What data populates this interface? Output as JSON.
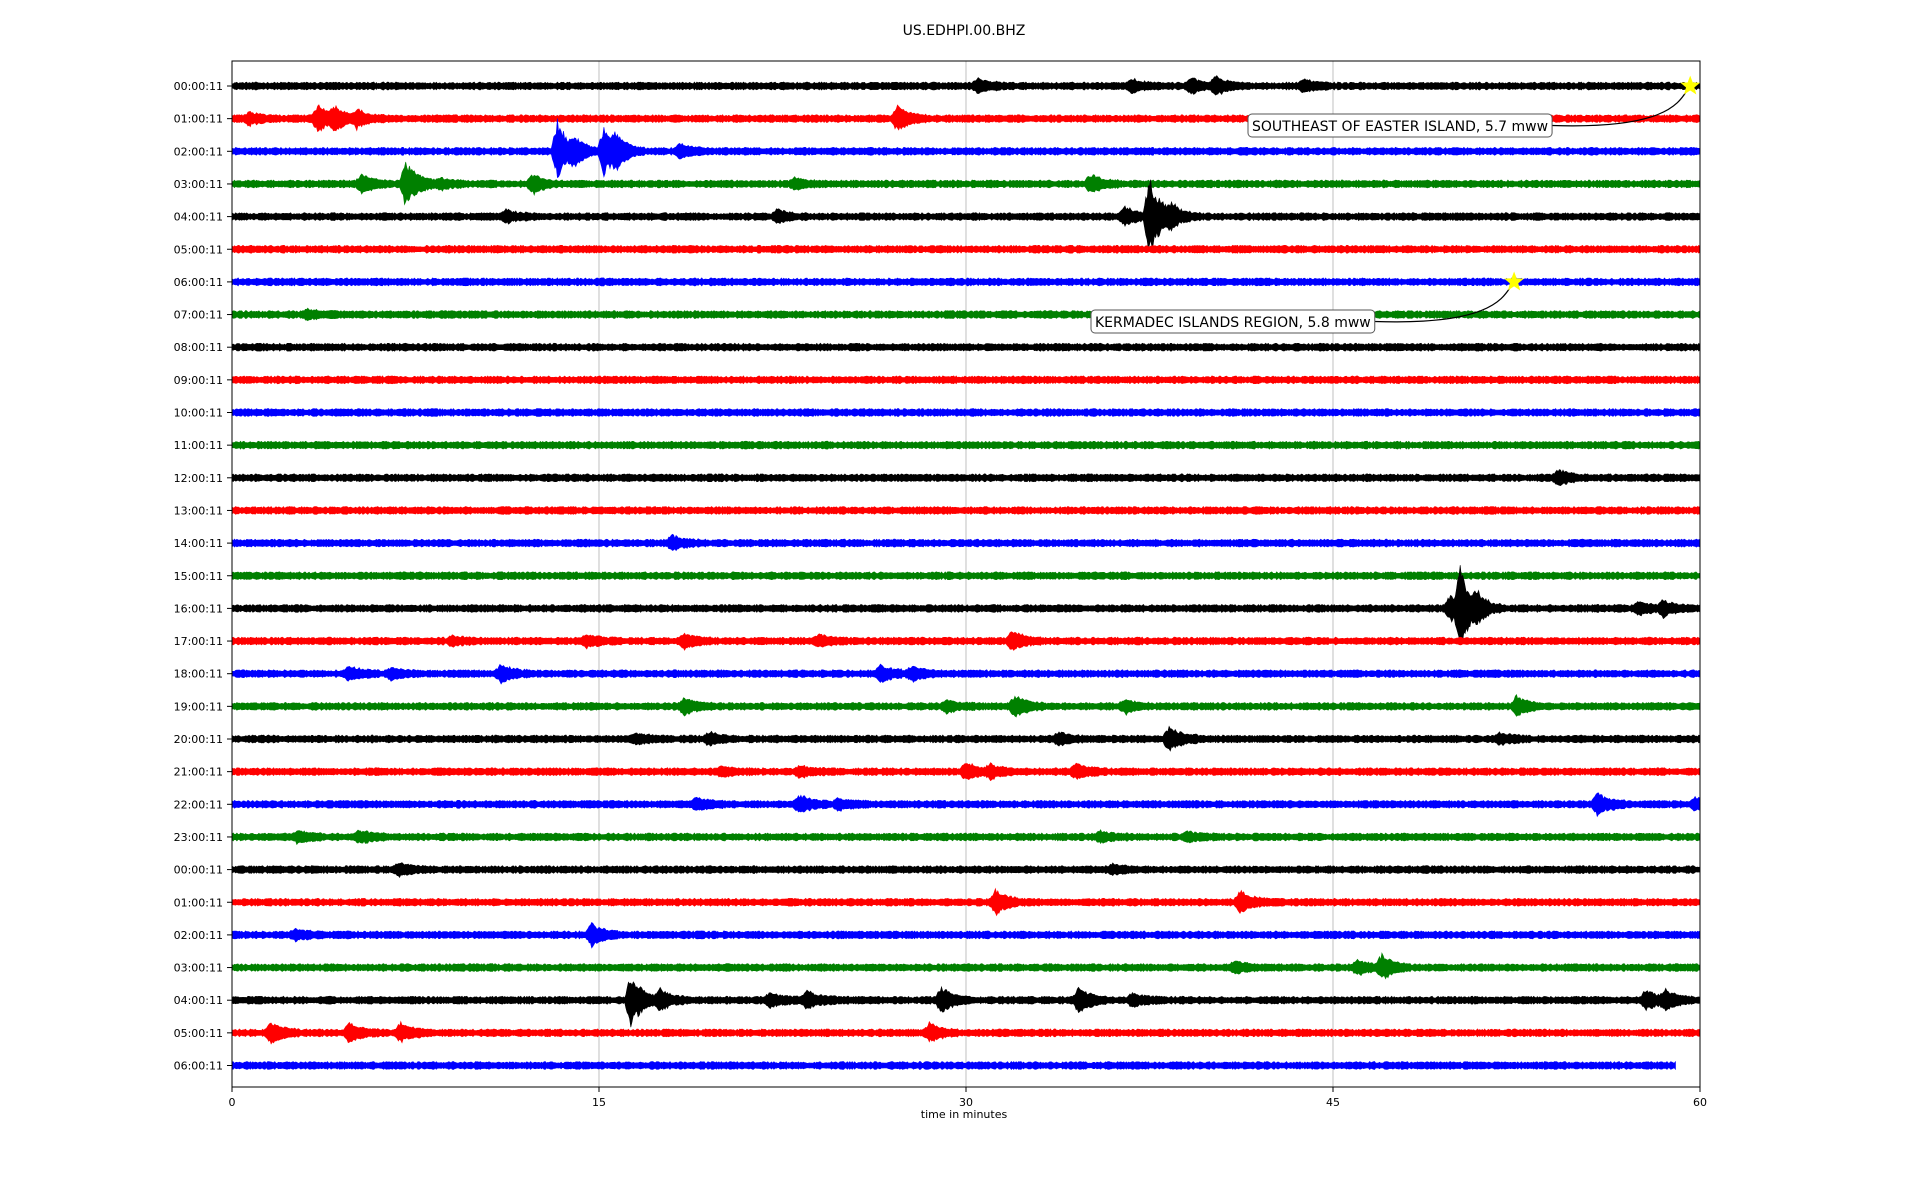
{
  "chart_data": {
    "type": "line",
    "title": "US.EDHPI.00.BHZ",
    "xlabel": "time in minutes",
    "ylabel": "",
    "xlim": [
      0,
      60
    ],
    "xticks": [
      0,
      15,
      30,
      45,
      60
    ],
    "grid": "vertical lines at 15, 30, 45",
    "trace_colors": [
      "#000000",
      "#ff0000",
      "#0000ff",
      "#008000"
    ],
    "star_color": "#ffff00",
    "rows": [
      {
        "label": "00:00:11",
        "color": "#000000",
        "events": [
          {
            "t": 30.5,
            "a": 0.35
          },
          {
            "t": 36.8,
            "a": 0.3
          },
          {
            "t": 39.2,
            "a": 0.4
          },
          {
            "t": 40.2,
            "a": 0.5
          },
          {
            "t": 43.8,
            "a": 0.3
          }
        ],
        "end": 60
      },
      {
        "label": "01:00:11",
        "color": "#ff0000",
        "events": [
          {
            "t": 0.7,
            "a": 0.3
          },
          {
            "t": 3.5,
            "a": 0.8
          },
          {
            "t": 4.2,
            "a": 0.6
          },
          {
            "t": 5.1,
            "a": 0.45
          },
          {
            "t": 27.2,
            "a": 0.7
          }
        ],
        "end": 60
      },
      {
        "label": "02:00:11",
        "color": "#0000ff",
        "events": [
          {
            "t": 13.3,
            "a": 1.9
          },
          {
            "t": 15.2,
            "a": 1.6
          },
          {
            "t": 14.0,
            "a": 0.5
          },
          {
            "t": 15.7,
            "a": 0.6
          },
          {
            "t": 18.3,
            "a": 0.35
          }
        ],
        "end": 60
      },
      {
        "label": "03:00:11",
        "color": "#008000",
        "events": [
          {
            "t": 5.3,
            "a": 0.5
          },
          {
            "t": 7.1,
            "a": 1.4
          },
          {
            "t": 8.5,
            "a": 0.3
          },
          {
            "t": 12.3,
            "a": 0.5
          },
          {
            "t": 23.0,
            "a": 0.25
          },
          {
            "t": 35.1,
            "a": 0.5
          }
        ],
        "end": 60
      },
      {
        "label": "04:00:11",
        "color": "#000000",
        "events": [
          {
            "t": 11.2,
            "a": 0.3
          },
          {
            "t": 22.3,
            "a": 0.3
          },
          {
            "t": 36.5,
            "a": 0.5
          },
          {
            "t": 37.5,
            "a": 2.4
          },
          {
            "t": 38.4,
            "a": 0.6
          }
        ],
        "end": 60
      },
      {
        "label": "05:00:11",
        "color": "#ff0000",
        "events": [],
        "end": 60
      },
      {
        "label": "06:00:11",
        "color": "#0000ff",
        "events": [],
        "end": 60
      },
      {
        "label": "07:00:11",
        "color": "#008000",
        "events": [
          {
            "t": 3.1,
            "a": 0.2
          }
        ],
        "end": 60
      },
      {
        "label": "08:00:11",
        "color": "#000000",
        "events": [],
        "end": 60
      },
      {
        "label": "09:00:11",
        "color": "#ff0000",
        "events": [],
        "end": 60
      },
      {
        "label": "10:00:11",
        "color": "#0000ff",
        "events": [],
        "end": 60
      },
      {
        "label": "11:00:11",
        "color": "#008000",
        "events": [],
        "end": 60
      },
      {
        "label": "12:00:11",
        "color": "#000000",
        "events": [
          {
            "t": 54.2,
            "a": 0.4
          }
        ],
        "end": 60
      },
      {
        "label": "13:00:11",
        "color": "#ff0000",
        "events": [],
        "end": 60
      },
      {
        "label": "14:00:11",
        "color": "#0000ff",
        "events": [
          {
            "t": 18.0,
            "a": 0.35
          }
        ],
        "end": 60
      },
      {
        "label": "15:00:11",
        "color": "#008000",
        "events": [],
        "end": 60
      },
      {
        "label": "16:00:11",
        "color": "#000000",
        "events": [
          {
            "t": 49.8,
            "a": 0.7
          },
          {
            "t": 50.2,
            "a": 2.3
          },
          {
            "t": 50.9,
            "a": 0.5
          },
          {
            "t": 57.5,
            "a": 0.3
          },
          {
            "t": 58.5,
            "a": 0.4
          }
        ],
        "end": 60
      },
      {
        "label": "17:00:11",
        "color": "#ff0000",
        "events": [
          {
            "t": 9.0,
            "a": 0.2
          },
          {
            "t": 14.5,
            "a": 0.3
          },
          {
            "t": 18.5,
            "a": 0.35
          },
          {
            "t": 24.0,
            "a": 0.3
          },
          {
            "t": 31.9,
            "a": 0.5
          }
        ],
        "end": 60
      },
      {
        "label": "18:00:11",
        "color": "#0000ff",
        "events": [
          {
            "t": 4.8,
            "a": 0.35
          },
          {
            "t": 6.5,
            "a": 0.3
          },
          {
            "t": 11.0,
            "a": 0.45
          },
          {
            "t": 26.5,
            "a": 0.45
          },
          {
            "t": 27.8,
            "a": 0.35
          }
        ],
        "end": 60
      },
      {
        "label": "19:00:11",
        "color": "#008000",
        "events": [
          {
            "t": 18.5,
            "a": 0.4
          },
          {
            "t": 29.2,
            "a": 0.3
          },
          {
            "t": 32.0,
            "a": 0.6
          },
          {
            "t": 36.5,
            "a": 0.35
          },
          {
            "t": 52.5,
            "a": 0.5
          }
        ],
        "end": 60
      },
      {
        "label": "20:00:11",
        "color": "#000000",
        "events": [
          {
            "t": 16.5,
            "a": 0.25
          },
          {
            "t": 19.5,
            "a": 0.3
          },
          {
            "t": 33.8,
            "a": 0.3
          },
          {
            "t": 38.3,
            "a": 0.7
          },
          {
            "t": 51.8,
            "a": 0.3
          }
        ],
        "end": 60
      },
      {
        "label": "21:00:11",
        "color": "#ff0000",
        "events": [
          {
            "t": 20.0,
            "a": 0.2
          },
          {
            "t": 23.2,
            "a": 0.25
          },
          {
            "t": 30.0,
            "a": 0.5
          },
          {
            "t": 31.0,
            "a": 0.3
          },
          {
            "t": 34.5,
            "a": 0.35
          }
        ],
        "end": 60
      },
      {
        "label": "22:00:11",
        "color": "#0000ff",
        "events": [
          {
            "t": 19.0,
            "a": 0.3
          },
          {
            "t": 23.2,
            "a": 0.45
          },
          {
            "t": 24.8,
            "a": 0.25
          },
          {
            "t": 55.8,
            "a": 0.6
          },
          {
            "t": 59.8,
            "a": 0.3
          }
        ],
        "end": 60
      },
      {
        "label": "23:00:11",
        "color": "#008000",
        "events": [
          {
            "t": 2.7,
            "a": 0.3
          },
          {
            "t": 5.2,
            "a": 0.3
          },
          {
            "t": 35.5,
            "a": 0.25
          },
          {
            "t": 39.0,
            "a": 0.2
          }
        ],
        "end": 60
      },
      {
        "label": "00:00:11",
        "color": "#000000",
        "events": [
          {
            "t": 6.8,
            "a": 0.3
          },
          {
            "t": 36.0,
            "a": 0.2
          }
        ],
        "end": 60
      },
      {
        "label": "01:00:11",
        "color": "#ff0000",
        "events": [
          {
            "t": 31.2,
            "a": 0.65
          },
          {
            "t": 41.2,
            "a": 0.6
          }
        ],
        "end": 60
      },
      {
        "label": "02:00:11",
        "color": "#0000ff",
        "events": [
          {
            "t": 2.6,
            "a": 0.25
          },
          {
            "t": 14.7,
            "a": 0.6
          }
        ],
        "end": 60
      },
      {
        "label": "03:00:11",
        "color": "#008000",
        "events": [
          {
            "t": 41.0,
            "a": 0.3
          },
          {
            "t": 46.0,
            "a": 0.35
          },
          {
            "t": 47.0,
            "a": 0.7
          }
        ],
        "end": 60
      },
      {
        "label": "04:00:11",
        "color": "#000000",
        "events": [
          {
            "t": 16.3,
            "a": 1.6
          },
          {
            "t": 17.5,
            "a": 0.6
          },
          {
            "t": 22.0,
            "a": 0.35
          },
          {
            "t": 23.5,
            "a": 0.45
          },
          {
            "t": 29.0,
            "a": 0.7
          },
          {
            "t": 34.6,
            "a": 0.75
          },
          {
            "t": 36.8,
            "a": 0.3
          },
          {
            "t": 57.8,
            "a": 0.6
          },
          {
            "t": 58.6,
            "a": 0.45
          }
        ],
        "end": 60
      },
      {
        "label": "05:00:11",
        "color": "#ff0000",
        "events": [
          {
            "t": 1.6,
            "a": 0.55
          },
          {
            "t": 4.8,
            "a": 0.5
          },
          {
            "t": 6.9,
            "a": 0.5
          },
          {
            "t": 28.5,
            "a": 0.5
          }
        ],
        "end": 60
      },
      {
        "label": "06:00:11",
        "color": "#0000ff",
        "events": [],
        "end": 59
      }
    ],
    "annotations": [
      {
        "text": "SOUTHEAST OF EASTER ISLAND, 5.7 mww",
        "row": 0,
        "t": 59.6
      },
      {
        "text": "KERMADEC ISLANDS REGION, 5.8 mww",
        "row": 6,
        "t": 52.4
      }
    ]
  }
}
